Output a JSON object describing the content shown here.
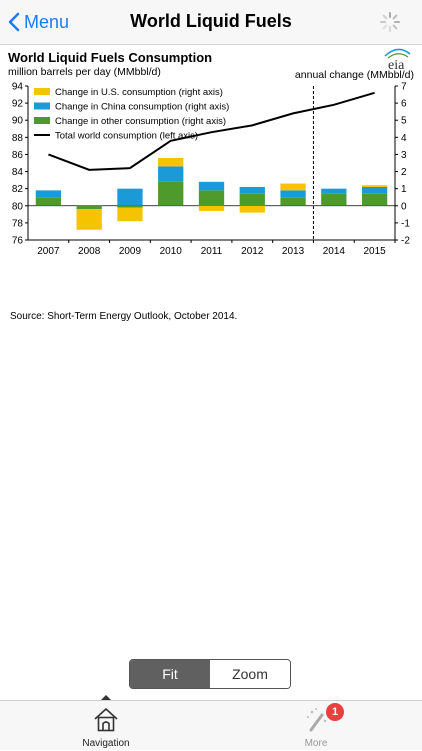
{
  "navbar": {
    "back_label": "Menu",
    "title": "World Liquid Fuels",
    "back_icon": "chevron-left-icon",
    "activity_icon": "spinner-icon"
  },
  "chart_data": {
    "type": "bar",
    "title": "World Liquid Fuels Consumption",
    "left_axis_label": "million barrels per day (MMbbl/d)",
    "right_axis_label": "annual change (MMbbl/d)",
    "categories": [
      "2007",
      "2008",
      "2009",
      "2010",
      "2011",
      "2012",
      "2013",
      "2014",
      "2015"
    ],
    "left_ticks": [
      "94",
      "92",
      "90",
      "88",
      "86",
      "84",
      "82",
      "80",
      "78",
      "76"
    ],
    "right_ticks": [
      "7",
      "6",
      "5",
      "4",
      "3",
      "2",
      "1",
      "0",
      "-1",
      "-2"
    ],
    "left_range": [
      76,
      94
    ],
    "right_range": [
      -2,
      7
    ],
    "forecast_divider_after": "2013",
    "series": [
      {
        "name": "Change in U.S. consumption (right axis)",
        "color": "#f5c400",
        "type": "bar",
        "values": [
          0.0,
          -1.2,
          -0.8,
          0.5,
          -0.3,
          -0.4,
          0.4,
          0.0,
          0.1
        ]
      },
      {
        "name": "Change in China consumption (right axis)",
        "color": "#1a9ad6",
        "type": "bar",
        "values": [
          0.4,
          0.0,
          1.0,
          0.9,
          0.5,
          0.4,
          0.4,
          0.3,
          0.4
        ]
      },
      {
        "name": "Change in other consumption (right axis)",
        "color": "#4f9a2d",
        "type": "bar",
        "values": [
          0.5,
          -0.2,
          -0.1,
          1.4,
          0.9,
          0.7,
          0.5,
          0.7,
          0.7
        ]
      },
      {
        "name": "Total world consumption (left axis)",
        "color": "#000000",
        "type": "line",
        "values": [
          86.0,
          84.2,
          84.4,
          87.6,
          88.6,
          89.4,
          90.8,
          91.8,
          93.2
        ]
      }
    ],
    "legend_position": "top-left",
    "grid": false,
    "logo_text": "eia"
  },
  "source_text": "Source: Short-Term Energy Outlook, October 2014.",
  "view_mode": {
    "fit_label": "Fit",
    "zoom_label": "Zoom",
    "selected": "Fit"
  },
  "tabbar": {
    "navigation_label": "Navigation",
    "navigation_icon": "home-icon",
    "more_label": "More",
    "more_icon": "magic-wand-icon",
    "more_badge": "1"
  },
  "colors": {
    "accent": "#1a7cf5",
    "badge": "#e8403c"
  }
}
